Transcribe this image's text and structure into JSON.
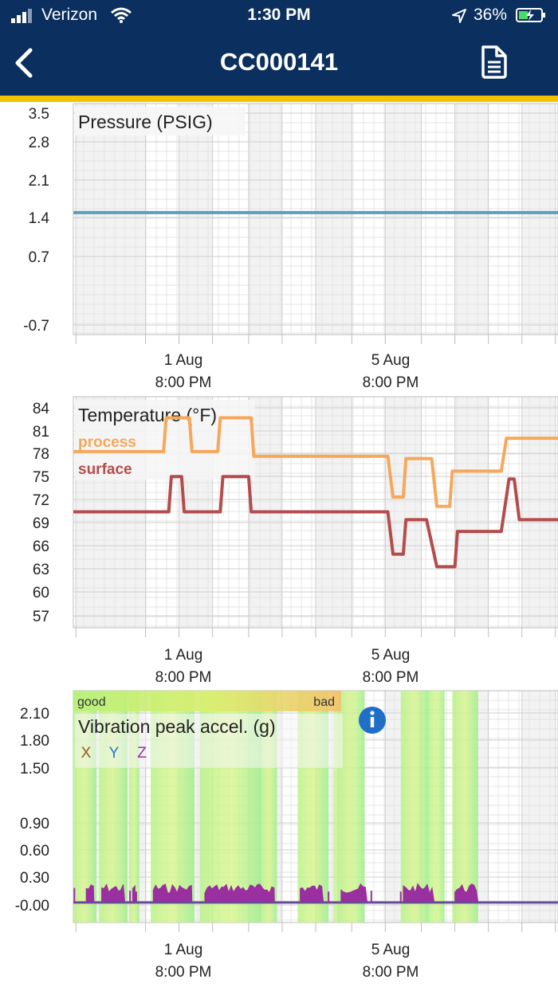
{
  "status": {
    "carrier": "Verizon",
    "time": "1:30 PM",
    "battery": "36%"
  },
  "nav": {
    "title": "CC000141"
  },
  "x_ticks": [
    {
      "date": "1 Aug",
      "time": "8:00 PM"
    },
    {
      "date": "5 Aug",
      "time": "8:00 PM"
    }
  ],
  "chart_data": [
    {
      "type": "line",
      "title": "Pressure (PSIG)",
      "y_ticks": [
        "3.5",
        "2.8",
        "2.1",
        "1.4",
        "0.7",
        "-0.7"
      ],
      "ylim": [
        -0.85,
        3.6
      ],
      "x_range_days": [
        0,
        9.4
      ],
      "series": [
        {
          "color": "#5b9fbf",
          "points": [
            [
              0,
              1.5
            ],
            [
              9.4,
              1.5
            ]
          ]
        }
      ]
    },
    {
      "type": "line",
      "title": "Temperature (°F)",
      "y_ticks": [
        "84",
        "81",
        "78",
        "75",
        "72",
        "69",
        "66",
        "63",
        "60",
        "57"
      ],
      "ylim": [
        55.5,
        85
      ],
      "x_range_days": [
        0,
        9.4
      ],
      "series": [
        {
          "name": "process",
          "color": "#f5a85a",
          "points": [
            [
              0,
              78
            ],
            [
              1.75,
              78
            ],
            [
              1.8,
              82.3
            ],
            [
              2.25,
              82.3
            ],
            [
              2.3,
              78
            ],
            [
              2.8,
              78
            ],
            [
              2.85,
              82.3
            ],
            [
              3.45,
              82.3
            ],
            [
              3.5,
              77.4
            ],
            [
              6.1,
              77.4
            ],
            [
              6.2,
              72.2
            ],
            [
              6.4,
              72.2
            ],
            [
              6.45,
              77.1
            ],
            [
              6.95,
              77.1
            ],
            [
              7.05,
              71
            ],
            [
              7.3,
              71
            ],
            [
              7.35,
              75.5
            ],
            [
              8.3,
              75.5
            ],
            [
              8.4,
              79.7
            ],
            [
              9.4,
              79.7
            ]
          ]
        },
        {
          "name": "surface",
          "color": "#b54c4c",
          "points": [
            [
              0,
              70.3
            ],
            [
              1.85,
              70.3
            ],
            [
              1.9,
              74.8
            ],
            [
              2.1,
              74.8
            ],
            [
              2.15,
              70.3
            ],
            [
              2.85,
              70.3
            ],
            [
              2.9,
              74.8
            ],
            [
              3.4,
              74.8
            ],
            [
              3.45,
              70.3
            ],
            [
              6.1,
              70.3
            ],
            [
              6.2,
              64.9
            ],
            [
              6.4,
              64.9
            ],
            [
              6.45,
              69.3
            ],
            [
              6.85,
              69.3
            ],
            [
              7.05,
              63.3
            ],
            [
              7.4,
              63.3
            ],
            [
              7.45,
              67.8
            ],
            [
              8.3,
              67.8
            ],
            [
              8.45,
              74.5
            ],
            [
              8.55,
              74.5
            ],
            [
              8.65,
              69.3
            ],
            [
              9.4,
              69.3
            ]
          ]
        }
      ]
    },
    {
      "type": "line",
      "title": "Vibration peak accel. (g)",
      "y_ticks": [
        "2.10",
        "1.80",
        "1.50",
        "0.90",
        "0.60",
        "0.30",
        "-0.00"
      ],
      "ylim": [
        -0.2,
        2.35
      ],
      "x_range_days": [
        0,
        9.4
      ],
      "legend": [
        "X",
        "Y",
        "Z"
      ],
      "legend_colors": [
        "#9a5a1a",
        "#1f7ad0",
        "#9a2fa0"
      ],
      "good_label": "good",
      "bad_label": "bad",
      "baseline": 0.02,
      "bursts": [
        [
          0.25,
          0.4
        ],
        [
          0.55,
          1.0
        ],
        [
          1.15,
          1.2
        ],
        [
          1.55,
          2.3
        ],
        [
          2.55,
          3.9
        ],
        [
          4.4,
          4.85
        ],
        [
          5.2,
          5.7
        ],
        [
          6.4,
          7.0
        ],
        [
          7.4,
          7.85
        ]
      ],
      "peak": 0.2,
      "bands": [
        [
          0.0,
          0.45
        ],
        [
          0.5,
          1.05
        ],
        [
          1.08,
          1.28
        ],
        [
          1.5,
          2.35
        ],
        [
          2.45,
          3.65
        ],
        [
          3.65,
          3.95
        ],
        [
          4.35,
          4.95
        ],
        [
          5.05,
          5.15
        ],
        [
          5.15,
          5.65
        ],
        [
          6.35,
          6.9
        ],
        [
          6.9,
          7.2
        ],
        [
          7.35,
          7.85
        ]
      ]
    }
  ]
}
